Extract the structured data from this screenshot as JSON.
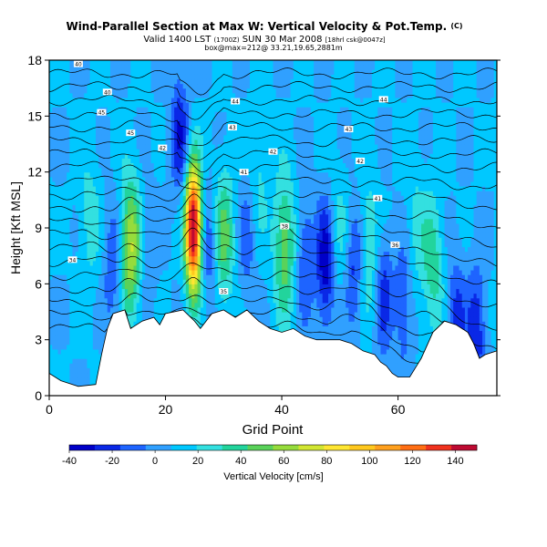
{
  "chart_data": {
    "type": "heatmap",
    "title": "Wind-Parallel Section at Max W: Vertical Velocity & Pot.Temp.",
    "title_suffix": "(C)",
    "subtitle_valid": "Valid 1400 LST",
    "subtitle_valid_small": "(1700Z)",
    "subtitle_date": "SUN 30 Mar 2008",
    "subtitle_run": "[18hrl csk@0047z]",
    "subtitle_location": "box@max=212@ 33.21,19.65,2881m",
    "xlabel": "Grid Point",
    "ylabel": "Height [Kft MSL]",
    "xlim": [
      0,
      77
    ],
    "ylim": [
      0,
      18
    ],
    "x_ticks": [
      "0",
      "20",
      "40",
      "60"
    ],
    "x_tick_values": [
      0,
      20,
      40,
      60
    ],
    "y_ticks": [
      "0",
      "3",
      "6",
      "9",
      "12",
      "15",
      "18"
    ],
    "y_tick_values": [
      0,
      3,
      6,
      9,
      12,
      15,
      18
    ],
    "colorbar": {
      "label": "Vertical Velocity [cm/s]",
      "range": [
        -40,
        150
      ],
      "tick_labels": [
        "-40",
        "-20",
        "0",
        "20",
        "40",
        "60",
        "80",
        "100",
        "120",
        "140"
      ],
      "tick_values": [
        -40,
        -20,
        0,
        20,
        40,
        60,
        80,
        100,
        120,
        140
      ],
      "colors": [
        "#0000c8",
        "#0a28e6",
        "#1e64ff",
        "#30a0ff",
        "#00c8ff",
        "#33e0e0",
        "#22d49c",
        "#5ad25a",
        "#96dc3c",
        "#d2e632",
        "#ffe632",
        "#ffc81e",
        "#ffa01e",
        "#ff6e14",
        "#f0321e",
        "#be0a32"
      ]
    },
    "terrain_kft": [
      [
        0,
        1.2
      ],
      [
        2,
        0.8
      ],
      [
        5,
        0.5
      ],
      [
        8,
        0.6
      ],
      [
        9,
        2.2
      ],
      [
        10,
        3.6
      ],
      [
        11,
        4.4
      ],
      [
        13,
        4.6
      ],
      [
        14,
        3.6
      ],
      [
        16,
        4.0
      ],
      [
        18,
        4.2
      ],
      [
        19,
        3.8
      ],
      [
        20,
        4.4
      ],
      [
        23,
        4.6
      ],
      [
        25,
        4.0
      ],
      [
        26,
        3.6
      ],
      [
        28,
        4.4
      ],
      [
        30,
        4.6
      ],
      [
        32,
        4.2
      ],
      [
        34,
        4.6
      ],
      [
        36,
        4.0
      ],
      [
        38,
        3.6
      ],
      [
        40,
        3.4
      ],
      [
        42,
        3.6
      ],
      [
        44,
        3.2
      ],
      [
        46,
        3.0
      ],
      [
        48,
        3.0
      ],
      [
        50,
        3.0
      ],
      [
        52,
        2.8
      ],
      [
        54,
        2.4
      ],
      [
        56,
        2.2
      ],
      [
        57,
        1.8
      ],
      [
        58,
        1.6
      ],
      [
        59,
        1.2
      ],
      [
        60,
        1.0
      ],
      [
        62,
        1.0
      ],
      [
        64,
        2.0
      ],
      [
        66,
        3.4
      ],
      [
        68,
        4.0
      ],
      [
        70,
        3.8
      ],
      [
        72,
        3.4
      ],
      [
        73,
        2.8
      ],
      [
        74,
        2.0
      ],
      [
        75,
        2.2
      ],
      [
        77,
        2.4
      ]
    ],
    "updrafts": [
      {
        "x": 14,
        "z": 8.0,
        "w": 60
      },
      {
        "x": 24.8,
        "z": 9.0,
        "w": 150
      },
      {
        "x": 30.0,
        "z": 8.5,
        "w": 40
      },
      {
        "x": 40.5,
        "z": 8.0,
        "w": 45
      },
      {
        "x": 36.0,
        "z": 12.0,
        "w": 15
      },
      {
        "x": 55.0,
        "z": 8.0,
        "w": 25
      },
      {
        "x": 66.0,
        "z": 7.0,
        "w": 30
      },
      {
        "x": 7.0,
        "z": 9.5,
        "w": 18
      },
      {
        "x": 63.0,
        "z": 9.0,
        "w": 15
      },
      {
        "x": 50.0,
        "z": 9.0,
        "w": 15
      }
    ],
    "downdrafts": [
      {
        "x": 11.0,
        "z": 7.0,
        "w": -25
      },
      {
        "x": 17.0,
        "z": 8.0,
        "w": -15
      },
      {
        "x": 22.5,
        "z": 14.0,
        "w": -35
      },
      {
        "x": 27.5,
        "z": 8.0,
        "w": -25
      },
      {
        "x": 34.0,
        "z": 8.5,
        "w": -20
      },
      {
        "x": 44.0,
        "z": 7.5,
        "w": -25
      },
      {
        "x": 47.5,
        "z": 7.0,
        "w": -45
      },
      {
        "x": 52.5,
        "z": 7.0,
        "w": -30
      },
      {
        "x": 57.5,
        "z": 5.5,
        "w": -30
      },
      {
        "x": 61.0,
        "z": 5.0,
        "w": -25
      },
      {
        "x": 70.0,
        "z": 4.0,
        "w": -30
      },
      {
        "x": 73.5,
        "z": 3.5,
        "w": -35
      }
    ],
    "theta_contour_labels": [
      {
        "text": "40",
        "x": 5.0,
        "z": 17.8
      },
      {
        "text": "40",
        "x": 10.0,
        "z": 16.3
      },
      {
        "text": "45",
        "x": 9.0,
        "z": 15.2
      },
      {
        "text": "45",
        "x": 14.0,
        "z": 14.1
      },
      {
        "text": "44",
        "x": 32.0,
        "z": 15.8
      },
      {
        "text": "44",
        "x": 57.5,
        "z": 15.9
      },
      {
        "text": "43",
        "x": 31.5,
        "z": 14.4
      },
      {
        "text": "43",
        "x": 51.5,
        "z": 14.3
      },
      {
        "text": "42",
        "x": 19.5,
        "z": 13.3
      },
      {
        "text": "42",
        "x": 38.5,
        "z": 13.1
      },
      {
        "text": "42",
        "x": 53.5,
        "z": 12.6
      },
      {
        "text": "41",
        "x": 33.5,
        "z": 12.0
      },
      {
        "text": "41",
        "x": 56.5,
        "z": 10.6
      },
      {
        "text": "38",
        "x": 40.5,
        "z": 9.1
      },
      {
        "text": "36",
        "x": 59.5,
        "z": 8.1
      },
      {
        "text": "34",
        "x": 4.0,
        "z": 7.3
      },
      {
        "text": "35",
        "x": 30.0,
        "z": 5.6
      }
    ]
  }
}
